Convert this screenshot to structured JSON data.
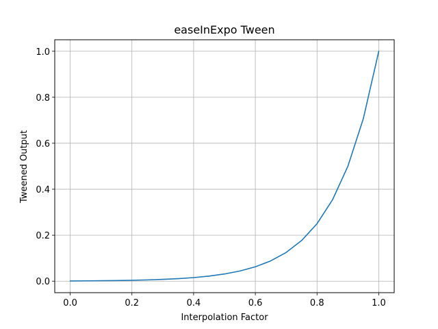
{
  "chart_data": {
    "type": "line",
    "title": "easeInExpo Tween",
    "xlabel": "Interpolation Factor",
    "ylabel": "Tweened Output",
    "xlim": [
      -0.05,
      1.05
    ],
    "ylim": [
      -0.05,
      1.05
    ],
    "xticks": [
      0.0,
      0.2,
      0.4,
      0.6,
      0.8,
      1.0
    ],
    "xtick_labels": [
      "0.0",
      "0.2",
      "0.4",
      "0.6",
      "0.8",
      "1.0"
    ],
    "yticks": [
      0.0,
      0.2,
      0.4,
      0.6,
      0.8,
      1.0
    ],
    "ytick_labels": [
      "0.0",
      "0.2",
      "0.4",
      "0.6",
      "0.8",
      "1.0"
    ],
    "grid": true,
    "series": [
      {
        "color": "#1f77b4",
        "x": [
          0.0,
          0.05,
          0.1,
          0.15,
          0.2,
          0.25,
          0.3,
          0.35,
          0.4,
          0.45,
          0.5,
          0.55,
          0.6,
          0.65,
          0.7,
          0.75,
          0.8,
          0.85,
          0.9,
          0.95,
          1.0
        ],
        "y": [
          0.001,
          0.0014,
          0.002,
          0.0028,
          0.0039,
          0.0055,
          0.0078,
          0.011,
          0.0156,
          0.0221,
          0.0313,
          0.0442,
          0.0625,
          0.0884,
          0.125,
          0.1768,
          0.25,
          0.3536,
          0.5,
          0.7071,
          1.0
        ]
      }
    ]
  }
}
